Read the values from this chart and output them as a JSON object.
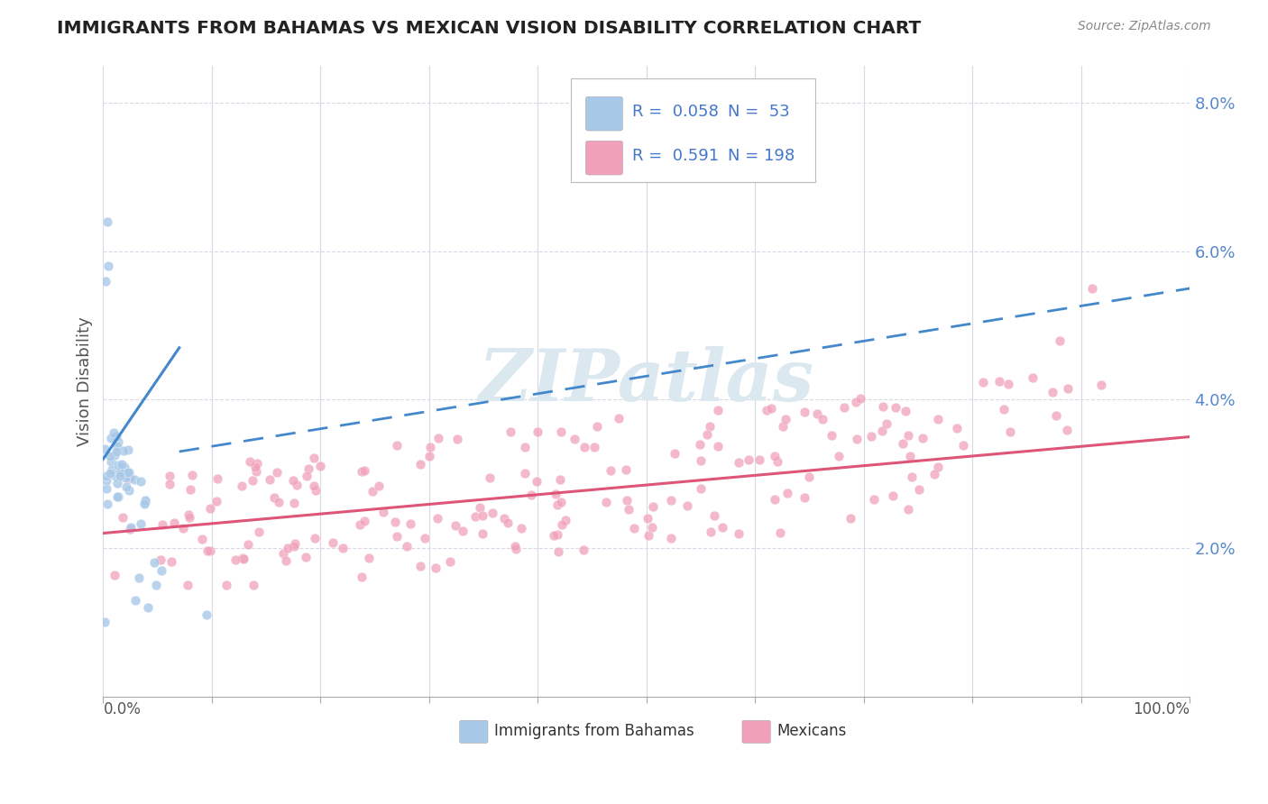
{
  "title": "IMMIGRANTS FROM BAHAMAS VS MEXICAN VISION DISABILITY CORRELATION CHART",
  "source": "Source: ZipAtlas.com",
  "ylabel": "Vision Disability",
  "x_min": 0.0,
  "x_max": 1.0,
  "y_min": 0.0,
  "y_max": 0.085,
  "y_ticks": [
    0.02,
    0.04,
    0.06,
    0.08
  ],
  "y_tick_labels": [
    "2.0%",
    "4.0%",
    "6.0%",
    "8.0%"
  ],
  "color_bahamas": "#a8c8e8",
  "color_mexican": "#f0a0b8",
  "color_bahamas_line": "#4488cc",
  "color_mexican_line": "#dd5577",
  "background": "#ffffff",
  "grid_color": "#d8d8e8",
  "watermark_color": "#dce8f0"
}
